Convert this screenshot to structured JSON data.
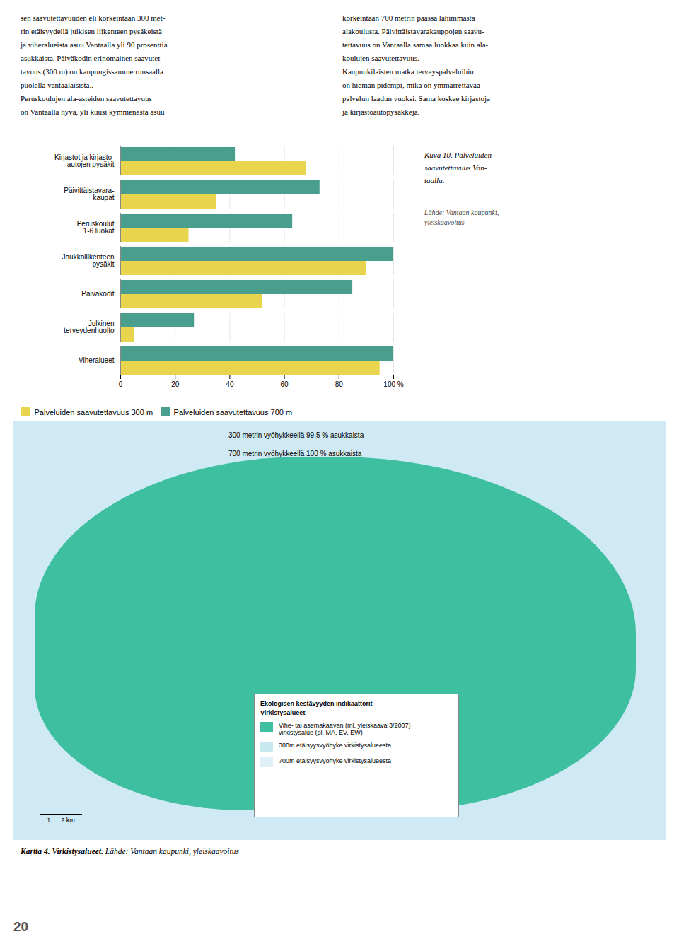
{
  "chart_data": {
    "type": "bar",
    "orientation": "horizontal",
    "title": "Kuva 10. Palveluiden\nsaavutettavuus Van-\ntaalla.",
    "categories": [
      "Kirjastot ja kirjasto-\nautojen pysäkit",
      "Päivittäistavara-\nkaupat",
      "Peruskoulut\n1-6 luokat",
      "Joukkoliikenteen\npysäkit",
      "Päiväkodit",
      "Julkinen\nterveydenhuolto",
      "Viheralueet"
    ],
    "series": [
      {
        "name": "Palveluiden saavutettavuus 300 m",
        "color": "#e8d44d",
        "values": [
          68,
          35,
          25,
          90,
          52,
          5,
          95
        ]
      },
      {
        "name": "Palveluiden saavutettavuus 700 m",
        "color": "#4a9e8e",
        "values": [
          42,
          73,
          63,
          100,
          85,
          27,
          100
        ]
      }
    ],
    "xlim": [
      0,
      100
    ],
    "xticks": [
      0,
      20,
      40,
      60,
      80,
      {
        "value": 100,
        "label": "100 %"
      }
    ],
    "grid": true,
    "legend": "lower left",
    "annotations": [
      "sen saavutettavuuden eli korkeintaan 300 met-\nrin etäisyydellä julkisen liikenteen pysäkeistä\nja viheralueista asuu Vantaalla yli 90 prosenttia\nasukkaista. Päiväkodin erinomainen saavutet-\ntavuus (300 m) on kaupungissamme runsaalla\npuolella vantaalaisista..\n    Peruskoulujen ala-asteiden saavutettavuus\non Vantaalla hyvä, yli kuusi kymmenestä asuu",
      "korkeintaan 700 metrin päässä lähimmästä\nalakoulusta. Päivittäistavarakauppojen saavu-\ntettavuus on Vantaalla samaa luokkaa kuin ala-\nkoulujen saavutettavuus.\n    Kaupunkilaisten matka terveyspalveluihin\non hieman pidempi, mikä on ymmärrettävää\npalvelun laadun vuoksi. Sama koskee kirjastoja\nja kirjastoautopysäkkejä.",
      "Lähde: Vantaan kaupunki,\nyleiskaavoitus",
      "300 metrin vyöhykkeellä 99,5 % asukkaista",
      "700 metrin vyöhykkeellä 100 % asukkaista",
      "Ekologisen kestävyyden indikaattorit",
      "Virkistysalueet",
      "Vihe- tai asemakaavan (ml. yleiskaava 3/2007)\nvirkistysalue (pl. MA, EV, EW)",
      "300m etäisyysvyöhyke virkistysalueesta",
      "700m etäisyysvyöhyke virkistysalueesta",
      "1      2 km",
      "Kartta 4. Virkistysalueet.",
      " Lähde: Vantaan kaupunki, yleiskaavoitus",
      "20"
    ]
  }
}
